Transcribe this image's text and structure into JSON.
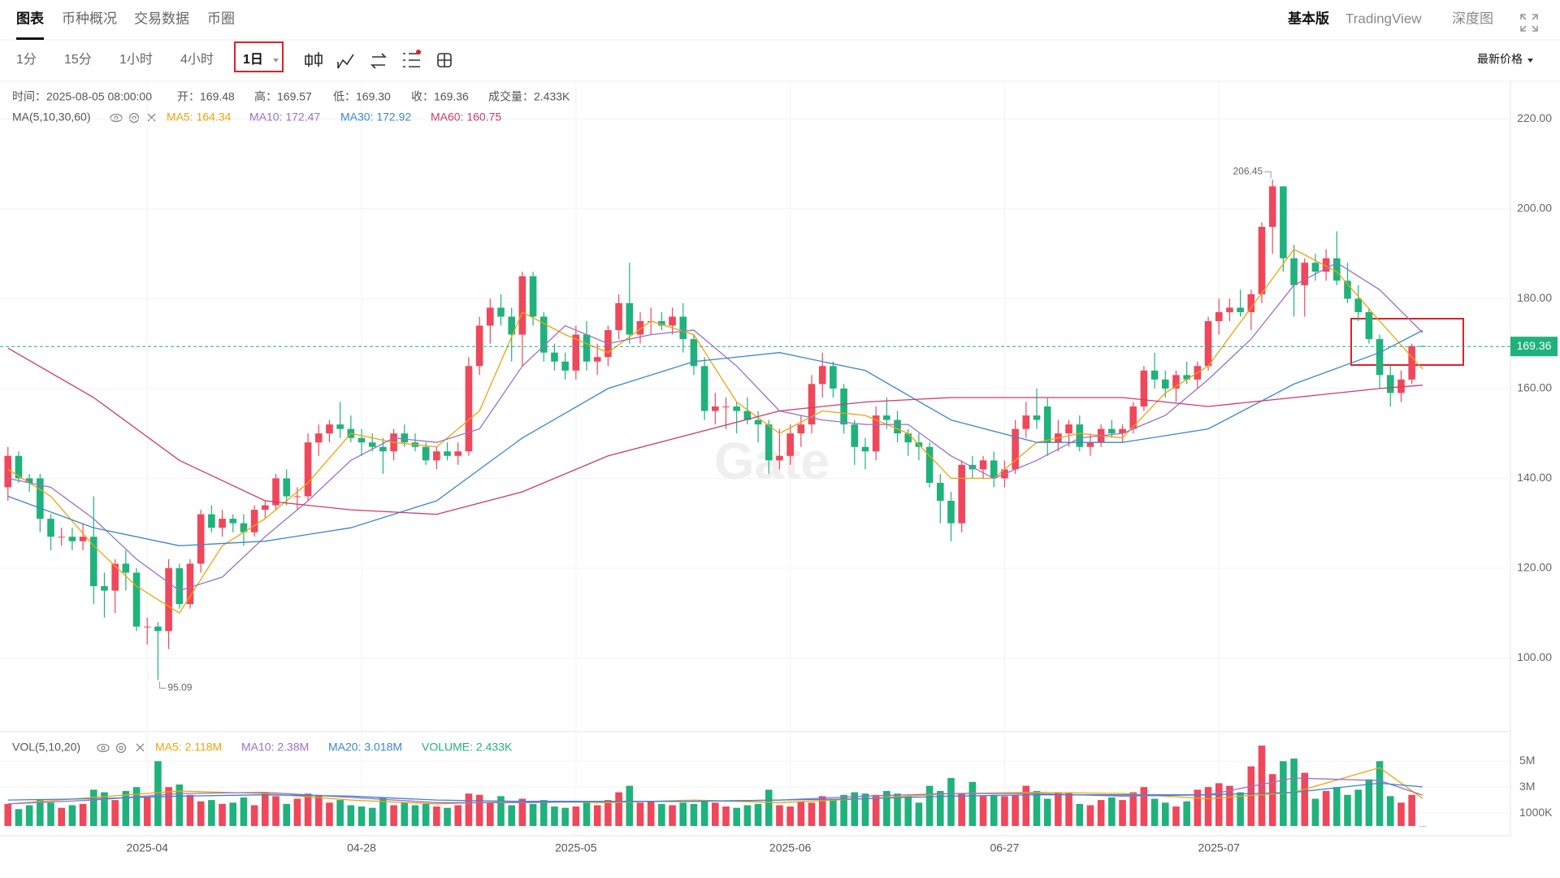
{
  "nav": {
    "tabs": [
      "图表",
      "币种概况",
      "交易数据",
      "币圈"
    ],
    "right": [
      "基本版",
      "TradingView",
      "深度图"
    ]
  },
  "toolbar": {
    "intervals": [
      "1分",
      "15分",
      "1小时",
      "4小时",
      "1日"
    ],
    "price_mode": "最新价格"
  },
  "chart_data": {
    "type": "candlestick",
    "info": [
      "时间：2025-08-05 08:00:00",
      "开：169.48",
      "高：169.57",
      "低：169.30",
      "收：169.36",
      "成交量：2.433K"
    ],
    "ma_title": "MA(5,10,30,60)",
    "watermark": "Gate",
    "up_color": "#f0475a",
    "down_color": "#1fb27c",
    "candles": [
      [
        138,
        147,
        135,
        145
      ],
      [
        145,
        146,
        139,
        140
      ],
      [
        140,
        141,
        137,
        139
      ],
      [
        140,
        141,
        128,
        131
      ],
      [
        131,
        132,
        124,
        127
      ],
      [
        127,
        129,
        125,
        127
      ],
      [
        127,
        129,
        124,
        126
      ],
      [
        126,
        130,
        124,
        127
      ],
      [
        127,
        136,
        112,
        116
      ],
      [
        116,
        119,
        109,
        115
      ],
      [
        115,
        122,
        110,
        121
      ],
      [
        121,
        124,
        115,
        119
      ],
      [
        119,
        120,
        106,
        107
      ],
      [
        107,
        109,
        103,
        107
      ],
      [
        107,
        108,
        95.09,
        106
      ],
      [
        106,
        122,
        102,
        120
      ],
      [
        120,
        121,
        111,
        112
      ],
      [
        112,
        122,
        111,
        121
      ],
      [
        121,
        133,
        119,
        132
      ],
      [
        132,
        134,
        128,
        129
      ],
      [
        129,
        133,
        127,
        131
      ],
      [
        131,
        132,
        128,
        130
      ],
      [
        130,
        132,
        125,
        128
      ],
      [
        128,
        134,
        127,
        133
      ],
      [
        133,
        135,
        131,
        134
      ],
      [
        134,
        141,
        133,
        140
      ],
      [
        140,
        142,
        134,
        136
      ],
      [
        136,
        138,
        133,
        136
      ],
      [
        136,
        150,
        135,
        148
      ],
      [
        148,
        152,
        145,
        150
      ],
      [
        150,
        153,
        148,
        152
      ],
      [
        152,
        157,
        149,
        151
      ],
      [
        151,
        154,
        148,
        149
      ],
      [
        149,
        151,
        145,
        148
      ],
      [
        148,
        150,
        146,
        147
      ],
      [
        147,
        149,
        141,
        146
      ],
      [
        146,
        151,
        144,
        150
      ],
      [
        150,
        152,
        147,
        148
      ],
      [
        148,
        150,
        146,
        147
      ],
      [
        147,
        148,
        143,
        144
      ],
      [
        144,
        147,
        142,
        146
      ],
      [
        146,
        148,
        144,
        145
      ],
      [
        145,
        148,
        143,
        146
      ],
      [
        146,
        167,
        145,
        165
      ],
      [
        165,
        176,
        163,
        174
      ],
      [
        174,
        180,
        170,
        178
      ],
      [
        178,
        181,
        174,
        176
      ],
      [
        176,
        178,
        166,
        172
      ],
      [
        172,
        186,
        165,
        185
      ],
      [
        185,
        186,
        174,
        176
      ],
      [
        176,
        177,
        166,
        168
      ],
      [
        168,
        170,
        164,
        166
      ],
      [
        166,
        168,
        162,
        164
      ],
      [
        164,
        174,
        162,
        172
      ],
      [
        172,
        175,
        164,
        166
      ],
      [
        166,
        170,
        163,
        167
      ],
      [
        167,
        174,
        165,
        173
      ],
      [
        173,
        181,
        171,
        179
      ],
      [
        179,
        188,
        170,
        172
      ],
      [
        172,
        177,
        170,
        175
      ],
      [
        175,
        178,
        172,
        175
      ],
      [
        175,
        177,
        173,
        174
      ],
      [
        174,
        178,
        172,
        176
      ],
      [
        176,
        179,
        168,
        171
      ],
      [
        171,
        172,
        163,
        165
      ],
      [
        165,
        167,
        153,
        155
      ],
      [
        155,
        159,
        152,
        156
      ],
      [
        156,
        158,
        151,
        156
      ],
      [
        156,
        157,
        150,
        155
      ],
      [
        155,
        158,
        152,
        153
      ],
      [
        153,
        155,
        148,
        152
      ],
      [
        152,
        153,
        141,
        144
      ],
      [
        144,
        151,
        142,
        145
      ],
      [
        145,
        152,
        143,
        150
      ],
      [
        150,
        154,
        147,
        152
      ],
      [
        152,
        163,
        150,
        161
      ],
      [
        161,
        168,
        158,
        165
      ],
      [
        165,
        166,
        158,
        160
      ],
      [
        160,
        161,
        150,
        152
      ],
      [
        152,
        153,
        143,
        147
      ],
      [
        147,
        149,
        142,
        146
      ],
      [
        146,
        156,
        144,
        154
      ],
      [
        154,
        158,
        151,
        153
      ],
      [
        153,
        155,
        148,
        150
      ],
      [
        150,
        151,
        145,
        148
      ],
      [
        148,
        150,
        144,
        147
      ],
      [
        147,
        148,
        138,
        139
      ],
      [
        139,
        141,
        130,
        135
      ],
      [
        135,
        137,
        126,
        130
      ],
      [
        130,
        144,
        128,
        143
      ],
      [
        143,
        145,
        140,
        142
      ],
      [
        142,
        145,
        140,
        144
      ],
      [
        144,
        146,
        138,
        140
      ],
      [
        140,
        144,
        138,
        142
      ],
      [
        142,
        153,
        141,
        151
      ],
      [
        151,
        157,
        149,
        154
      ],
      [
        154,
        160,
        151,
        153
      ],
      [
        156,
        158,
        145,
        148
      ],
      [
        148,
        153,
        146,
        150
      ],
      [
        150,
        153,
        147,
        152
      ],
      [
        152,
        154,
        146,
        147
      ],
      [
        147,
        150,
        145,
        148
      ],
      [
        148,
        152,
        147,
        151
      ],
      [
        151,
        153,
        149,
        150
      ],
      [
        150,
        152,
        148,
        151
      ],
      [
        151,
        157,
        150,
        156
      ],
      [
        156,
        165,
        155,
        164
      ],
      [
        164,
        168,
        160,
        162
      ],
      [
        162,
        164,
        158,
        160
      ],
      [
        160,
        164,
        157,
        163
      ],
      [
        163,
        166,
        161,
        162
      ],
      [
        162,
        166,
        160,
        165
      ],
      [
        165,
        176,
        164,
        175
      ],
      [
        175,
        180,
        172,
        177
      ],
      [
        177,
        180,
        175,
        178
      ],
      [
        178,
        182,
        176,
        177
      ],
      [
        177,
        182,
        173,
        181
      ],
      [
        181,
        197,
        179,
        196
      ],
      [
        196,
        206.45,
        190,
        205
      ],
      [
        205,
        205,
        186,
        189
      ],
      [
        189,
        192,
        176,
        183
      ],
      [
        183,
        189,
        176,
        188
      ],
      [
        188,
        190,
        184,
        186
      ],
      [
        186,
        191,
        184,
        189
      ],
      [
        189,
        195,
        183,
        184
      ],
      [
        184,
        188,
        179,
        180
      ],
      [
        180,
        183,
        175,
        177
      ],
      [
        177,
        178,
        170,
        171
      ],
      [
        171,
        172,
        160,
        163
      ],
      [
        163,
        165,
        156,
        159
      ],
      [
        159,
        164,
        157,
        162
      ],
      [
        162,
        170,
        161,
        169.48
      ],
      [
        169.48,
        169.57,
        169.3,
        169.36
      ]
    ],
    "xlim": [
      -0.74,
      140.2
    ],
    "xticks": [
      {
        "value": 13,
        "label": "2025-04"
      },
      {
        "value": 33,
        "label": "04-28"
      },
      {
        "value": 53,
        "label": "2025-05"
      },
      {
        "value": 73,
        "label": "2025-06"
      },
      {
        "value": 93,
        "label": "06-27"
      },
      {
        "value": 113,
        "label": "2025-07"
      }
    ],
    "ylim": [
      83.6,
      228.4
    ],
    "yticks": [
      {
        "value": 100,
        "label": "100.00"
      },
      {
        "value": 120,
        "label": "120.00"
      },
      {
        "value": 140,
        "label": "140.00"
      },
      {
        "value": 160,
        "label": "160.00"
      },
      {
        "value": 180,
        "label": "180.00"
      },
      {
        "value": 200,
        "label": "200.00"
      },
      {
        "value": 220,
        "label": "220.00"
      }
    ],
    "grid": true,
    "last_price": 169.36,
    "high": 206.45,
    "low": 95.09,
    "series": [
      {
        "name": "MA5: 164.34",
        "color": "#f0a30a",
        "x": [
          0,
          4,
          8,
          12,
          16,
          20,
          24,
          28,
          32,
          36,
          40,
          44,
          48,
          52,
          56,
          60,
          64,
          68,
          72,
          76,
          80,
          84,
          88,
          92,
          96,
          100,
          104,
          108,
          112,
          116,
          120,
          124,
          128,
          132
        ],
        "values": [
          142,
          136,
          125,
          116,
          110,
          125,
          131,
          139,
          150,
          148,
          147,
          155,
          177,
          172,
          168,
          175,
          172,
          157,
          150,
          155,
          154,
          150,
          140,
          140,
          148,
          150,
          149,
          159,
          165,
          178,
          191,
          186,
          175,
          164.34
        ]
      },
      {
        "name": "MA10: 172.47",
        "color": "#9b6fc7",
        "x": [
          0,
          4,
          8,
          12,
          16,
          20,
          24,
          28,
          32,
          36,
          40,
          44,
          48,
          52,
          56,
          60,
          64,
          68,
          72,
          76,
          80,
          84,
          88,
          92,
          96,
          100,
          104,
          108,
          112,
          116,
          120,
          124,
          128,
          132
        ],
        "values": [
          140,
          138,
          131,
          122,
          115,
          118,
          127,
          135,
          144,
          149,
          148,
          151,
          165,
          174,
          170,
          172,
          173,
          165,
          155,
          153,
          152,
          152,
          145,
          140,
          144,
          149,
          150,
          154,
          162,
          171,
          183,
          188,
          182,
          172.47
        ]
      },
      {
        "name": "MA30: 172.92",
        "color": "#3a86d1",
        "x": [
          0,
          8,
          16,
          24,
          32,
          40,
          48,
          56,
          64,
          72,
          80,
          88,
          96,
          104,
          112,
          120,
          128,
          132
        ],
        "values": [
          136,
          129,
          125,
          126,
          129,
          135,
          149,
          160,
          166,
          168,
          164,
          153,
          148,
          148,
          151,
          161,
          168,
          172.92
        ]
      },
      {
        "name": "MA60: 160.75",
        "color": "#d0386e",
        "x": [
          0,
          8,
          16,
          24,
          32,
          40,
          48,
          56,
          64,
          72,
          80,
          88,
          96,
          104,
          112,
          120,
          128,
          132
        ],
        "values": [
          169,
          158,
          144,
          135,
          133,
          132,
          137,
          145,
          150,
          155,
          157,
          158,
          158,
          158,
          156,
          158,
          160,
          160.75
        ]
      }
    ],
    "volume": {
      "title": "VOL(5,10,20)",
      "current": "VOLUME: 2.433K",
      "current_color": "#1fb27c",
      "ylim": [
        0,
        6.9
      ],
      "yticks": [
        {
          "value": 1,
          "label": "1000K"
        },
        {
          "value": 3,
          "label": "3M"
        },
        {
          "value": 5,
          "label": "5M"
        }
      ],
      "values": [
        1.7,
        1.3,
        1.6,
        2.0,
        1.8,
        1.4,
        1.6,
        1.7,
        2.8,
        2.6,
        2.0,
        2.7,
        3.0,
        2.2,
        5.0,
        3.0,
        3.2,
        2.4,
        1.9,
        2.0,
        1.7,
        1.8,
        2.2,
        1.6,
        2.6,
        2.3,
        1.7,
        2.1,
        2.5,
        2.4,
        1.8,
        2.0,
        1.6,
        1.5,
        1.4,
        2.2,
        1.6,
        1.8,
        1.6,
        1.7,
        1.5,
        1.4,
        1.6,
        2.5,
        2.4,
        1.8,
        2.3,
        1.6,
        2.1,
        1.7,
        2.0,
        1.5,
        1.4,
        1.5,
        1.9,
        1.6,
        2.0,
        2.6,
        3.1,
        1.8,
        1.9,
        1.7,
        1.6,
        1.8,
        1.7,
        1.9,
        1.8,
        1.5,
        1.4,
        1.6,
        1.7,
        2.8,
        1.6,
        1.5,
        1.9,
        1.8,
        2.3,
        2.1,
        2.4,
        2.6,
        2.5,
        2.4,
        2.7,
        2.5,
        2.3,
        1.8,
        3.1,
        2.7,
        3.7,
        2.5,
        3.4,
        2.3,
        2.4,
        2.3,
        2.4,
        3.1,
        2.7,
        2.1,
        2.6,
        2.6,
        1.7,
        1.6,
        2.0,
        2.2,
        2.0,
        2.6,
        3.0,
        2.1,
        1.8,
        1.5,
        1.9,
        2.8,
        3.0,
        3.3,
        3.1,
        2.6,
        4.6,
        6.2,
        4.0,
        5.0,
        5.2,
        4.1,
        2.1,
        2.7,
        3.0,
        2.4,
        2.8,
        3.6,
        5.0,
        2.3,
        1.8,
        2.4,
        0.002433
      ],
      "series": [
        {
          "name": "MA5: 2.118M",
          "color": "#f0a30a",
          "x": [
            0,
            8,
            16,
            24,
            32,
            40,
            48,
            56,
            64,
            72,
            80,
            88,
            96,
            104,
            112,
            120,
            128,
            132
          ],
          "values": [
            1.7,
            2.2,
            2.7,
            2.5,
            2.0,
            1.7,
            1.9,
            1.8,
            2.0,
            1.8,
            2.1,
            2.5,
            2.6,
            2.5,
            2.1,
            2.6,
            4.5,
            2.118
          ]
        },
        {
          "name": "MA10: 2.38M",
          "color": "#9b6fc7",
          "x": [
            0,
            8,
            16,
            24,
            32,
            40,
            48,
            56,
            64,
            72,
            80,
            88,
            96,
            104,
            112,
            120,
            128,
            132
          ],
          "values": [
            1.7,
            2.0,
            2.5,
            2.6,
            2.2,
            1.8,
            1.8,
            1.9,
            1.9,
            2.0,
            2.3,
            2.5,
            2.5,
            2.3,
            2.4,
            3.7,
            3.5,
            2.38
          ]
        },
        {
          "name": "MA20: 3.018M",
          "color": "#3a86d1",
          "x": [
            0,
            8,
            16,
            24,
            32,
            40,
            48,
            56,
            64,
            72,
            80,
            88,
            96,
            104,
            112,
            120,
            128,
            132
          ],
          "values": [
            2.0,
            2.1,
            2.3,
            2.4,
            2.3,
            2.0,
            1.9,
            1.9,
            1.9,
            2.0,
            2.1,
            2.3,
            2.4,
            2.4,
            2.4,
            2.6,
            3.3,
            3.018
          ]
        }
      ]
    }
  }
}
